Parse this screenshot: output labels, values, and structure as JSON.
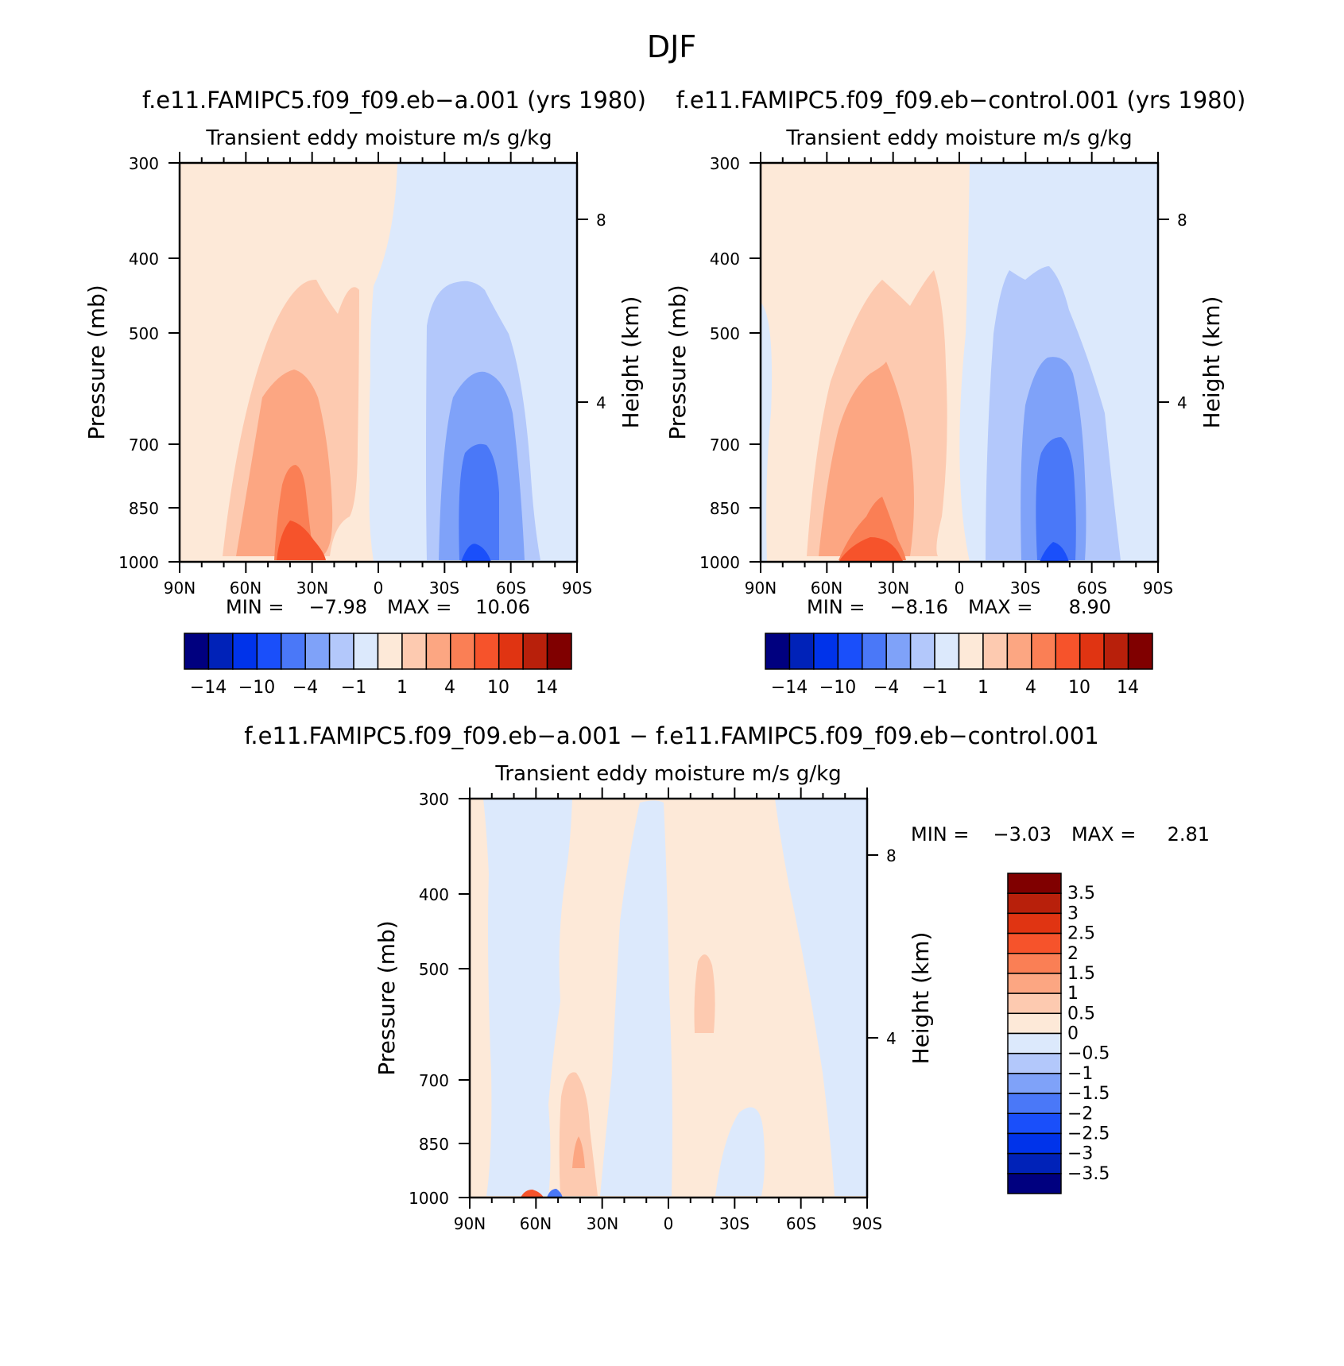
{
  "figure_title": "DJF",
  "chart_data": [
    {
      "type": "heatmap",
      "title": "f.e11.FAMIPC5.f09_f09.eb−a.001 (yrs 1980)",
      "subtitle": "Transient eddy moisture m/s g/kg",
      "xlabel": "",
      "ylabel": "Pressure (mb)",
      "ylabel_right": "Height (km)",
      "x_tick_labels": [
        "90N",
        "60N",
        "30N",
        "0",
        "30S",
        "60S",
        "90S"
      ],
      "y_tick_labels": [
        "300",
        "400",
        "500",
        "700",
        "850",
        "1000"
      ],
      "y_right_tick_labels": [
        "8",
        "4"
      ],
      "xlim": [
        90,
        -90
      ],
      "ylim": [
        1000,
        300
      ],
      "min_label": "MIN =",
      "min_value": "−7.98",
      "max_label": "MAX =",
      "max_value": "10.06",
      "colorbar_tick_labels": [
        "−14",
        "−10",
        "−4",
        "−1",
        "1",
        "4",
        "10",
        "14"
      ]
    },
    {
      "type": "heatmap",
      "title": "f.e11.FAMIPC5.f09_f09.eb−control.001 (yrs 1980)",
      "subtitle": "Transient eddy moisture m/s g/kg",
      "xlabel": "",
      "ylabel": "Pressure (mb)",
      "ylabel_right": "Height (km)",
      "x_tick_labels": [
        "90N",
        "60N",
        "30N",
        "0",
        "30S",
        "60S",
        "90S"
      ],
      "y_tick_labels": [
        "300",
        "400",
        "500",
        "700",
        "850",
        "1000"
      ],
      "y_right_tick_labels": [
        "8",
        "4"
      ],
      "xlim": [
        90,
        -90
      ],
      "ylim": [
        1000,
        300
      ],
      "min_label": "MIN =",
      "min_value": "−8.16",
      "max_label": "MAX =",
      "max_value": "8.90",
      "colorbar_tick_labels": [
        "−14",
        "−10",
        "−4",
        "−1",
        "1",
        "4",
        "10",
        "14"
      ]
    },
    {
      "type": "heatmap",
      "title": "f.e11.FAMIPC5.f09_f09.eb−a.001 − f.e11.FAMIPC5.f09_f09.eb−control.001",
      "subtitle": "Transient eddy moisture m/s g/kg",
      "xlabel": "",
      "ylabel": "Pressure (mb)",
      "ylabel_right": "Height (km)",
      "x_tick_labels": [
        "90N",
        "60N",
        "30N",
        "0",
        "30S",
        "60S",
        "90S"
      ],
      "y_tick_labels": [
        "300",
        "400",
        "500",
        "700",
        "850",
        "1000"
      ],
      "y_right_tick_labels": [
        "8",
        "4"
      ],
      "xlim": [
        90,
        -90
      ],
      "ylim": [
        1000,
        300
      ],
      "min_label": "MIN =",
      "min_value": "−3.03",
      "max_label": "MAX =",
      "max_value": "2.81",
      "colorbar_tick_labels": [
        "3.5",
        "3",
        "2.5",
        "2",
        "1.5",
        "1",
        "0.5",
        "0",
        "−0.5",
        "−1",
        "−1.5",
        "−2",
        "−2.5",
        "−3",
        "−3.5"
      ]
    }
  ],
  "colors": {
    "palette16": [
      "#00007f",
      "#0022b8",
      "#0033ea",
      "#1a4ffa",
      "#4a78f8",
      "#7fa2f9",
      "#b3c8fb",
      "#dce9fc",
      "#fde9d8",
      "#fdcab0",
      "#fca682",
      "#fa7f55",
      "#f6532b",
      "#e03412",
      "#b8200b",
      "#800000"
    ],
    "palette16_diff": [
      "#00007f",
      "#0022b8",
      "#0033ea",
      "#1a4ffa",
      "#4a78f8",
      "#7fa2f9",
      "#b3c8fb",
      "#dce9fc",
      "#fde9d8",
      "#fdcab0",
      "#fca682",
      "#fa7f55",
      "#f6532b",
      "#e03412",
      "#b8200b",
      "#800000"
    ]
  }
}
